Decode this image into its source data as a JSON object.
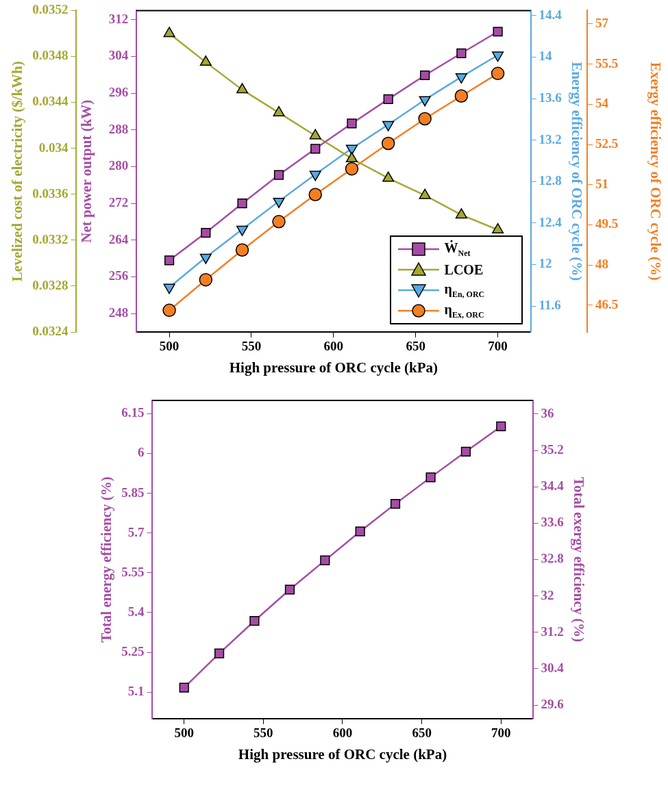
{
  "chart_data": [
    {
      "type": "line",
      "xlabel": "High pressure of ORC cycle (kPa)",
      "ylabel": "Net power output (kW)",
      "y2label": "Levelized cost of electricity ($/kWh)",
      "y3label": "Energy efficiency of ORC cycle (%)",
      "x": [
        500,
        522.2,
        544.4,
        566.7,
        588.9,
        611.1,
        633.3,
        655.6,
        677.8,
        700
      ],
      "xlim": [
        480,
        720
      ],
      "xticks": [
        500,
        550,
        600,
        650,
        700
      ],
      "ylim": [
        244,
        314
      ],
      "yticks": [
        248,
        256,
        264,
        272,
        280,
        288,
        296,
        304,
        312
      ],
      "y2lim": [
        0.0324,
        0.0352
      ],
      "y2ticks": [
        0.0324,
        0.0328,
        0.0332,
        0.0336,
        0.034,
        0.0344,
        0.0348,
        0.0352
      ],
      "y3lim": [
        11.35,
        14.45
      ],
      "y3ticks": [
        11.6,
        12,
        12.4,
        12.8,
        13.2,
        13.6,
        14,
        14.4
      ],
      "grid": false,
      "legend": "bottom right",
      "series": [
        {
          "name": "Ẇ$_{Net}$",
          "color": "#a64ca6",
          "marker": "square",
          "values": [
            259.6,
            265.6,
            272.0,
            278.2,
            283.9,
            289.4,
            294.7,
            299.9,
            304.7,
            309.4
          ]
        },
        {
          "name": "LCOE",
          "color": "#a5a832",
          "marker": "triangle",
          "axis": "y2",
          "values": [
            0.035,
            0.03475,
            0.03451,
            0.03431,
            0.03411,
            0.03391,
            0.03374,
            0.03359,
            0.03342,
            0.03329
          ]
        },
        {
          "name": "η$_{En, ORC}$",
          "color": "#5aa9e2",
          "marker": "triangle-down",
          "axis": "y3",
          "values": [
            11.78,
            12.07,
            12.34,
            12.61,
            12.87,
            13.12,
            13.35,
            13.59,
            13.81,
            14.02
          ]
        }
      ]
    },
    {
      "type": "line",
      "ylabel": "Exergy efficiency of ORC cycle (%)",
      "x": [
        500,
        522.2,
        544.4,
        566.7,
        588.9,
        611.1,
        633.3,
        655.6,
        677.8,
        700
      ],
      "xlim": [
        480,
        720
      ],
      "tick_labels": "y",
      "ylim": [
        45.5,
        57.5
      ],
      "yticks": [
        46.5,
        48,
        49.5,
        51,
        52.5,
        54,
        55.5,
        57
      ],
      "grid": false,
      "legend": "bottom right",
      "series": [
        {
          "name": "η$_{Ex, ORC}$",
          "color": "#f47f22",
          "marker": "circle",
          "values": [
            46.31,
            47.45,
            48.56,
            49.62,
            50.63,
            51.59,
            52.54,
            53.46,
            54.31,
            55.15
          ]
        }
      ]
    },
    {
      "type": "line",
      "xlabel": "High pressure of ORC cycle (kPa)",
      "ylabel": "Total energy efficiency (%)",
      "y2label": "Total exergy efficiency (%)",
      "x": [
        500,
        522.2,
        544.4,
        566.7,
        588.9,
        611.1,
        633.3,
        655.6,
        677.8,
        700
      ],
      "xlim": [
        480,
        720
      ],
      "xticks": [
        500,
        550,
        600,
        650,
        700
      ],
      "ylim": [
        5.0,
        6.2
      ],
      "yticks": [
        5.1,
        5.25,
        5.4,
        5.55,
        5.7,
        5.85,
        6,
        6.15
      ],
      "y2lim": [
        29.3,
        36.3
      ],
      "y2ticks": [
        29.6,
        30.4,
        31.2,
        32,
        32.8,
        33.6,
        34.4,
        35.2,
        36
      ],
      "grid": false,
      "marker": "square",
      "series": [
        {
          "color": "#a64ca6",
          "values": [
            5.117,
            5.246,
            5.369,
            5.487,
            5.597,
            5.706,
            5.81,
            5.91,
            6.007,
            6.102
          ]
        }
      ]
    }
  ]
}
